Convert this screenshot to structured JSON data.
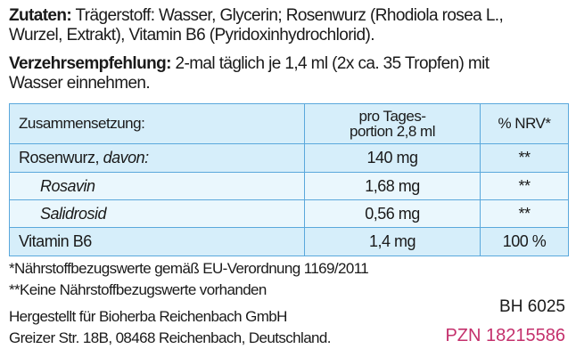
{
  "ingredients": {
    "label": "Zutaten:",
    "lines": [
      "Trägerstoff: Wasser, Glycerin; Rosenwurz (Rhodiola rosea L.,",
      "Wurzel, Extrakt), Vitamin B6 (Pyridoxinhydrochlorid)."
    ]
  },
  "recommendation": {
    "label": "Verzehrsempfehlung:",
    "lines": [
      "2-mal täglich je 1,4 ml (2x ca. 35 Tropfen) mit",
      "Wasser einnehmen."
    ]
  },
  "table": {
    "header": [
      "Zusammensetzung:",
      [
        "pro Tages-",
        "portion 2,8 ml"
      ],
      "% NRV*"
    ],
    "rows": [
      {
        "name": "Rosenwurz,",
        "note": "davon:",
        "amount": "140 mg",
        "nrv": "**"
      },
      {
        "name": "Rosavin",
        "amount": "1,68 mg",
        "nrv": "**"
      },
      {
        "name": "Salidrosid",
        "amount": "0,56 mg",
        "nrv": "**"
      },
      {
        "name": "Vitamin B6",
        "amount": "1,4 mg",
        "nrv": "100 %"
      }
    ]
  },
  "footnotes": [
    "*Nährstoffbezugswerte gemäß EU-Verordnung 1169/2011",
    "**Keine Nährstoffbezugswerte vorhanden"
  ],
  "manufacturer": [
    "Hergestellt für Bioherba Reichenbach GmbH",
    "Greizer Str. 18B, 08468 Reichenbach, Deutschland."
  ],
  "batch": "BH 6025",
  "pzn": "PZN 18215586"
}
